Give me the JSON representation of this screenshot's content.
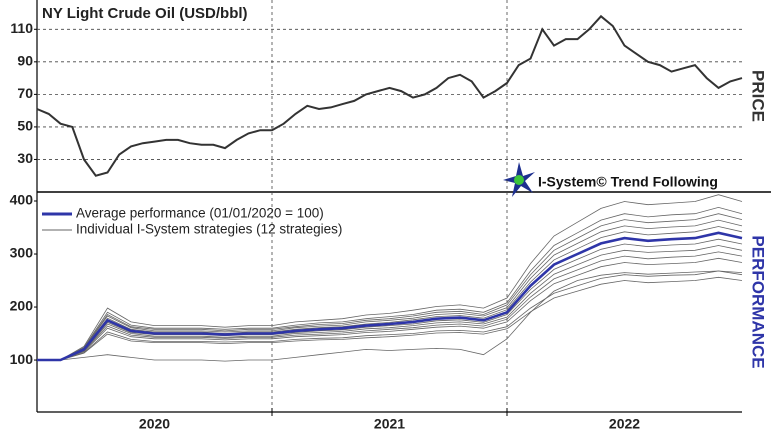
{
  "chart_data": [
    {
      "type": "line",
      "title": "NY Light Crude Oil (USD/bbl)",
      "side_label": "PRICE",
      "logo_text": "I-System© Trend Following",
      "x": [
        2020.0,
        2020.05,
        2020.1,
        2020.15,
        2020.2,
        2020.25,
        2020.3,
        2020.35,
        2020.4,
        2020.45,
        2020.5,
        2020.55,
        2020.6,
        2020.65,
        2020.7,
        2020.75,
        2020.8,
        2020.85,
        2020.9,
        2020.95,
        2021.0,
        2021.05,
        2021.1,
        2021.15,
        2021.2,
        2021.25,
        2021.3,
        2021.35,
        2021.4,
        2021.45,
        2021.5,
        2021.55,
        2021.6,
        2021.65,
        2021.7,
        2021.75,
        2021.8,
        2021.85,
        2021.9,
        2021.95,
        2022.0,
        2022.05,
        2022.1,
        2022.15,
        2022.2,
        2022.25,
        2022.3,
        2022.35,
        2022.4,
        2022.45,
        2022.5,
        2022.55,
        2022.6,
        2022.65,
        2022.7,
        2022.75,
        2022.8,
        2022.85,
        2022.9,
        2022.95,
        2023.0
      ],
      "values": [
        61,
        58,
        52,
        50,
        30,
        20,
        22,
        33,
        38,
        40,
        41,
        42,
        42,
        40,
        39,
        39,
        37,
        42,
        46,
        48,
        48,
        52,
        58,
        63,
        61,
        62,
        64,
        66,
        70,
        72,
        74,
        72,
        68,
        70,
        74,
        80,
        82,
        78,
        68,
        72,
        77,
        88,
        92,
        110,
        100,
        104,
        104,
        110,
        118,
        112,
        100,
        95,
        90,
        88,
        84,
        86,
        88,
        80,
        74,
        78,
        80
      ],
      "color": "#333333",
      "xlim": [
        2020,
        2023
      ],
      "dividers": [
        2021,
        2022
      ],
      "ylim": [
        10,
        128
      ],
      "yticks": [
        30,
        50,
        70,
        90,
        110
      ],
      "grid": true
    },
    {
      "type": "line",
      "side_label": "PERFORMANCE",
      "x": [
        2020.0,
        2020.1,
        2020.2,
        2020.3,
        2020.4,
        2020.5,
        2020.6,
        2020.7,
        2020.8,
        2020.9,
        2021.0,
        2021.1,
        2021.2,
        2021.3,
        2021.4,
        2021.5,
        2021.6,
        2021.7,
        2021.8,
        2021.9,
        2022.0,
        2022.1,
        2022.2,
        2022.3,
        2022.4,
        2022.5,
        2022.6,
        2022.7,
        2022.8,
        2022.9,
        2023.0
      ],
      "series": [
        {
          "name": "Average performance (01/01/2020 = 100)",
          "color": "#2e35a8",
          "values": [
            100,
            100,
            120,
            175,
            155,
            150,
            150,
            150,
            148,
            150,
            150,
            155,
            158,
            160,
            165,
            168,
            172,
            178,
            180,
            175,
            190,
            240,
            280,
            300,
            320,
            330,
            325,
            328,
            330,
            340,
            330
          ]
        }
      ],
      "strategies": {
        "name": "Individual I-System strategies (12 strategies)",
        "color": "#666666",
        "values": [
          [
            100,
            100,
            113,
            149,
            136,
            133,
            133,
            133,
            131,
            133,
            133,
            136,
            138,
            139,
            142,
            144,
            147,
            151,
            152,
            149,
            159,
            191,
            217,
            230,
            243,
            250,
            246,
            248,
            250,
            256,
            250
          ],
          [
            100,
            100,
            114,
            153,
            139,
            135,
            135,
            135,
            134,
            135,
            135,
            139,
            141,
            142,
            146,
            148,
            150,
            155,
            156,
            153,
            163,
            198,
            226,
            240,
            254,
            261,
            258,
            260,
            261,
            268,
            261
          ],
          [
            100,
            100,
            116,
            160,
            144,
            140,
            140,
            140,
            138,
            140,
            140,
            144,
            146,
            148,
            152,
            154,
            158,
            162,
            164,
            160,
            172,
            212,
            244,
            260,
            276,
            284,
            280,
            282,
            284,
            292,
            284
          ],
          [
            100,
            100,
            117,
            164,
            147,
            143,
            143,
            143,
            141,
            143,
            143,
            147,
            149,
            151,
            155,
            158,
            161,
            166,
            168,
            164,
            177,
            219,
            253,
            270,
            287,
            296,
            291,
            294,
            296,
            304,
            296
          ],
          [
            100,
            100,
            118,
            168,
            150,
            145,
            145,
            145,
            143,
            145,
            145,
            150,
            152,
            154,
            159,
            161,
            165,
            170,
            172,
            168,
            181,
            226,
            262,
            280,
            298,
            307,
            303,
            305,
            307,
            316,
            307
          ],
          [
            100,
            100,
            119,
            171,
            152,
            148,
            148,
            148,
            146,
            148,
            148,
            152,
            155,
            157,
            162,
            165,
            168,
            174,
            176,
            171,
            186,
            233,
            271,
            290,
            309,
            319,
            314,
            317,
            319,
            328,
            319
          ],
          [
            100,
            100,
            121,
            179,
            158,
            153,
            153,
            153,
            150,
            153,
            153,
            158,
            161,
            163,
            168,
            171,
            176,
            182,
            184,
            179,
            195,
            247,
            289,
            310,
            331,
            342,
            336,
            339,
            342,
            352,
            342
          ],
          [
            100,
            100,
            122,
            183,
            161,
            155,
            155,
            155,
            153,
            155,
            155,
            161,
            164,
            166,
            172,
            175,
            179,
            186,
            188,
            183,
            199,
            254,
            298,
            320,
            342,
            353,
            348,
            351,
            353,
            364,
            353
          ],
          [
            100,
            100,
            123,
            186,
            163,
            158,
            158,
            158,
            155,
            158,
            158,
            163,
            167,
            169,
            175,
            178,
            183,
            190,
            192,
            186,
            204,
            261,
            307,
            330,
            353,
            365,
            359,
            362,
            365,
            376,
            365
          ],
          [
            100,
            100,
            124,
            190,
            166,
            160,
            160,
            160,
            158,
            160,
            160,
            166,
            170,
            172,
            178,
            182,
            186,
            194,
            196,
            190,
            208,
            268,
            316,
            340,
            364,
            376,
            370,
            374,
            376,
            388,
            376
          ],
          [
            100,
            100,
            126,
            198,
            172,
            165,
            165,
            165,
            162,
            165,
            165,
            172,
            175,
            178,
            185,
            188,
            194,
            201,
            204,
            198,
            217,
            282,
            334,
            360,
            386,
            399,
            393,
            396,
            399,
            412,
            399
          ],
          [
            100,
            100,
            105,
            110,
            105,
            100,
            100,
            100,
            98,
            100,
            100,
            105,
            110,
            115,
            120,
            118,
            120,
            122,
            120,
            110,
            140,
            190,
            230,
            250,
            260,
            265,
            262,
            264,
            266,
            268,
            265
          ]
        ]
      },
      "xlim": [
        2020,
        2023
      ],
      "xticks": [
        {
          "value": 2020.5,
          "label": "2020"
        },
        {
          "value": 2021.5,
          "label": "2021"
        },
        {
          "value": 2022.5,
          "label": "2022"
        }
      ],
      "ylim": [
        2,
        417
      ],
      "yticks": [
        100,
        200,
        300,
        400
      ],
      "grid": false
    }
  ]
}
